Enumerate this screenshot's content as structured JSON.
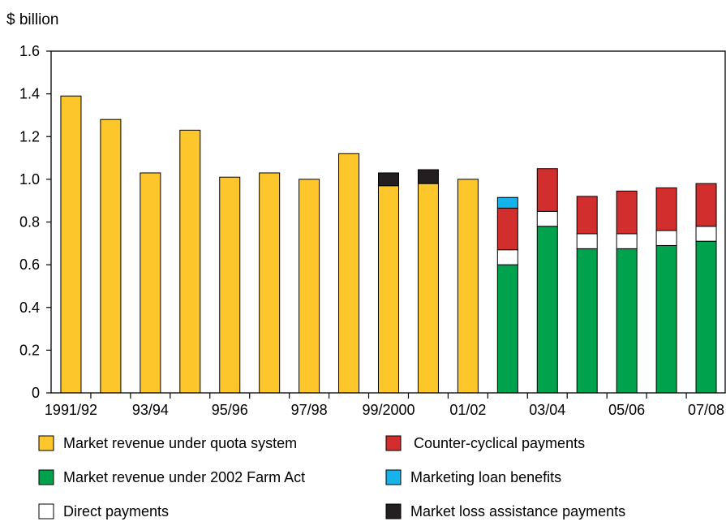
{
  "chart_data": {
    "type": "bar",
    "stacked": true,
    "ylabel": "$ billion",
    "ylim": [
      0,
      1.6
    ],
    "yticks": [
      "0",
      "0.2",
      "0.4",
      "0.6",
      "0.8",
      "1.0",
      "1.2",
      "1.4",
      "1.6"
    ],
    "grid": false,
    "legend_position": "bottom",
    "categories": [
      "1991/92",
      "92/93",
      "93/94",
      "94/95",
      "95/96",
      "96/97",
      "97/98",
      "98/99",
      "99/2000",
      "2000/01",
      "01/02",
      "02/03",
      "03/04",
      "04/05",
      "05/06",
      "06/07",
      "07/08"
    ],
    "xtick_labels": [
      "1991/92",
      "",
      "93/94",
      "",
      "95/96",
      "",
      "97/98",
      "",
      "99/2000",
      "",
      "01/02",
      "",
      "03/04",
      "",
      "05/06",
      "",
      "07/08"
    ],
    "series": [
      {
        "key": "quota",
        "name": "Market revenue under quota system",
        "color": "#fdc62a",
        "values": [
          1.39,
          1.28,
          1.03,
          1.23,
          1.01,
          1.03,
          1.0,
          1.12,
          0.97,
          0.98,
          1.0,
          0,
          0,
          0,
          0,
          0,
          0
        ]
      },
      {
        "key": "farm_act",
        "name": "Market revenue under 2002 Farm Act",
        "color": "#00a24d",
        "values": [
          0,
          0,
          0,
          0,
          0,
          0,
          0,
          0,
          0,
          0,
          0,
          0.6,
          0.78,
          0.675,
          0.675,
          0.69,
          0.71
        ]
      },
      {
        "key": "direct",
        "name": "Direct payments",
        "color": "#ffffff",
        "values": [
          0,
          0,
          0,
          0,
          0,
          0,
          0,
          0,
          0,
          0,
          0,
          0.07,
          0.07,
          0.07,
          0.07,
          0.07,
          0.07
        ]
      },
      {
        "key": "countercyclical",
        "name": "Counter-cyclical payments",
        "color": "#d22e2e",
        "values": [
          0,
          0,
          0,
          0,
          0,
          0,
          0,
          0,
          0,
          0,
          0,
          0.195,
          0.2,
          0.175,
          0.2,
          0.2,
          0.2
        ]
      },
      {
        "key": "loan",
        "name": "Marketing loan benefits",
        "color": "#16b3ea",
        "values": [
          0,
          0,
          0,
          0,
          0,
          0,
          0,
          0,
          0,
          0,
          0,
          0.05,
          0,
          0,
          0,
          0,
          0
        ]
      },
      {
        "key": "loss",
        "name": "Market loss assistance payments",
        "color": "#231f20",
        "values": [
          0,
          0,
          0,
          0,
          0,
          0,
          0,
          0,
          0.06,
          0.065,
          0,
          0,
          0,
          0,
          0,
          0,
          0
        ]
      }
    ],
    "legend_order": [
      "quota",
      "countercyclical",
      "farm_act",
      "loan",
      "direct",
      "loss"
    ]
  }
}
